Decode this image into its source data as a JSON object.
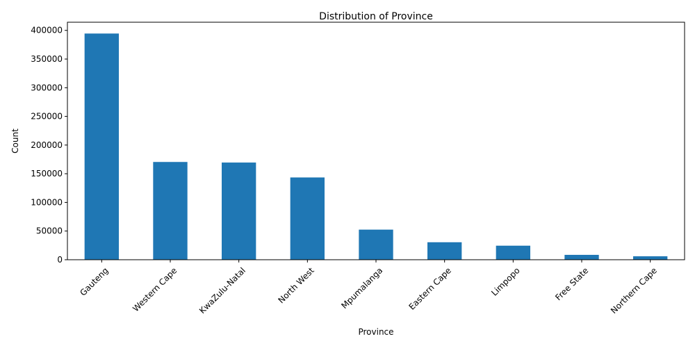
{
  "chart_data": {
    "type": "bar",
    "title": "Distribution of Province",
    "xlabel": "Province",
    "ylabel": "Count",
    "categories": [
      "Gauteng",
      "Western Cape",
      "KwaZulu-Natal",
      "North West",
      "Mpumalanga",
      "Eastern Cape",
      "Limpopo",
      "Free State",
      "Northern Cape"
    ],
    "values": [
      394500,
      170500,
      169500,
      143500,
      52500,
      30500,
      24500,
      8500,
      6000
    ],
    "ylim": [
      0,
      414225
    ],
    "yticks": [
      0,
      50000,
      100000,
      150000,
      200000,
      250000,
      300000,
      350000,
      400000
    ],
    "grid": false,
    "bar_color": "#1f77b4"
  }
}
